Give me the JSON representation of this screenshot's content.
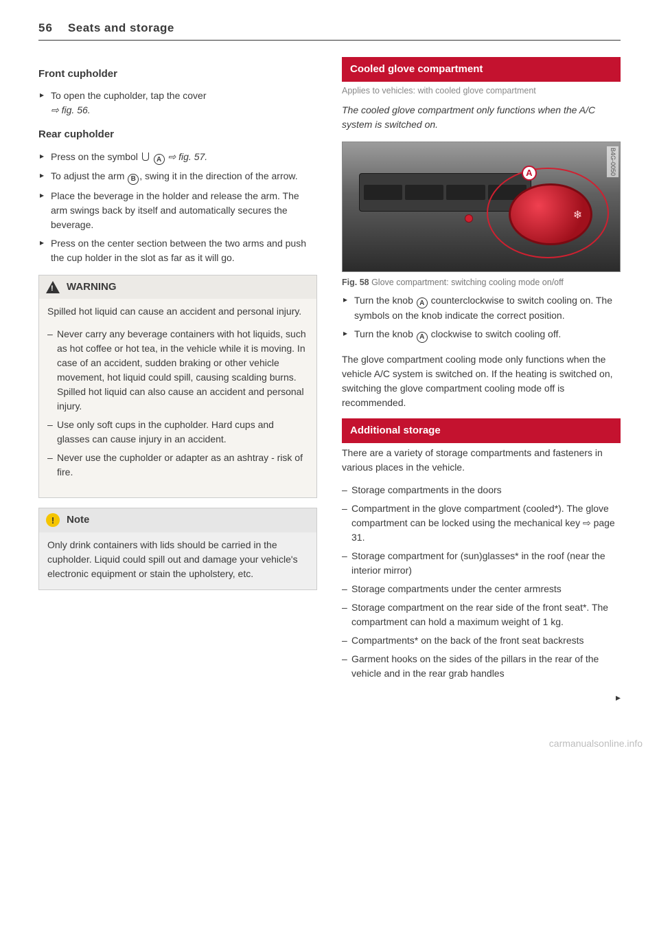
{
  "page": {
    "number": "56",
    "header": "Seats and storage"
  },
  "left": {
    "front": {
      "title": "Front cupholder",
      "items": [
        "To open the cupholder, tap the cover"
      ],
      "ref": "fig. 56."
    },
    "rear": {
      "title": "Rear cupholder",
      "item1_pre": "Press on the symbol",
      "item1_post": "fig. 57.",
      "item2_pre": "To adjust the arm",
      "item2_post": ", swing it in the direction of the arrow.",
      "item3": "Place the beverage in the holder and release the arm. The arm swings back by itself and automatically secures the beverage.",
      "item4": "Press on the center section between the two arms and push the cup holder in the slot as far as it will go."
    },
    "warning": {
      "title": "WARNING",
      "intro": "Spilled hot liquid can cause an accident and personal injury.",
      "items": [
        "Never carry any beverage containers with hot liquids, such as hot coffee or hot tea, in the vehicle while it is moving. In case of an accident, sudden braking or other vehicle movement, hot liquid could spill, causing scalding burns. Spilled hot liquid can also cause an accident and personal injury.",
        "Use only soft cups in the cupholder. Hard cups and glasses can cause injury in an accident.",
        "Never use the cupholder or adapter as an ashtray - risk of fire."
      ]
    },
    "note": {
      "title": "Note",
      "body": "Only drink containers with lids should be carried in the cupholder. Liquid could spill out and damage your vehicle's electronic equipment or stain the upholstery, etc."
    }
  },
  "right": {
    "glove": {
      "banner": "Cooled glove compartment",
      "applies": "Applies to vehicles: with cooled glove compartment",
      "lede": "The cooled glove compartment only functions when the A/C system is switched on.",
      "figure": {
        "side": "B4G-0050",
        "label": "A",
        "caption_bold": "Fig. 58",
        "caption": "Glove compartment: switching cooling mode on/off"
      },
      "step1_pre": "Turn the knob",
      "step1_post": "counterclockwise to switch cooling on. The symbols on the knob indicate the correct position.",
      "step2_pre": "Turn the knob",
      "step2_post": "clockwise to switch cooling off.",
      "para": "The glove compartment cooling mode only functions when the vehicle A/C system is switched on. If the heating is switched on, switching the glove compartment cooling mode off is recommended."
    },
    "storage": {
      "banner": "Additional storage",
      "intro": "There are a variety of storage compartments and fasteners in various places in the vehicle.",
      "items": [
        "Storage compartments in the doors",
        "Compartment in the glove compartment (cooled*). The glove compartment can be locked using the mechanical key ⇨ page 31.",
        "Storage compartment for (sun)glasses* in the roof (near the interior mirror)",
        "Storage compartments under the center armrests",
        "Storage compartment on the rear side of the front seat*. The compartment can hold a maximum weight of 1 kg.",
        "Compartments* on the back of the front seat backrests",
        "Garment hooks on the sides of the pillars in the rear of the vehicle and in the rear grab handles"
      ]
    }
  },
  "watermark": "carmanualsonline.info",
  "labels": {
    "A": "A",
    "B": "B"
  },
  "colors": {
    "accent_red": "#c4122f",
    "note_yellow": "#f5c500",
    "text": "#3a3a3a",
    "muted": "#888"
  }
}
